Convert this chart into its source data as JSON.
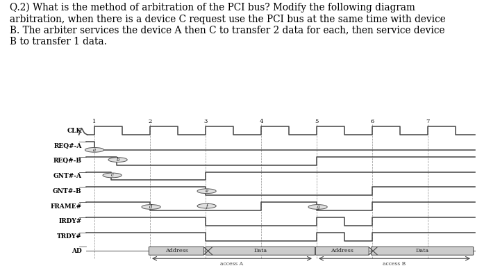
{
  "title_text": "Q.2) What is the method of arbitration of the PCI bus? Modify the following diagram\narbitration, when there is a device C request use the PCI bus at the same time with device\nB. The arbiter services the device A then C to transfer 2 data for each, then service device\nB to transfer 1 data.",
  "bg_color": "#ffffff",
  "line_color": "#444444",
  "text_color": "#000000",
  "dashed_color": "#999999",
  "box_face_color": "#cccccc",
  "box_edge_color": "#555555",
  "circle_face": "#e0e0e0",
  "circle_edge": "#555555",
  "signal_labels": [
    "CLK",
    "REQ#-A",
    "REQ#-B",
    "GNT#-A",
    "GNT#-B",
    "FRAME#",
    "IRDY#",
    "TRDY#",
    "AD"
  ],
  "tick_labels": [
    "1",
    "2",
    "3",
    "4",
    "5",
    "6",
    "7"
  ],
  "tick_xs": [
    1.7,
    2.7,
    3.7,
    4.7,
    5.7,
    6.7,
    7.7
  ]
}
